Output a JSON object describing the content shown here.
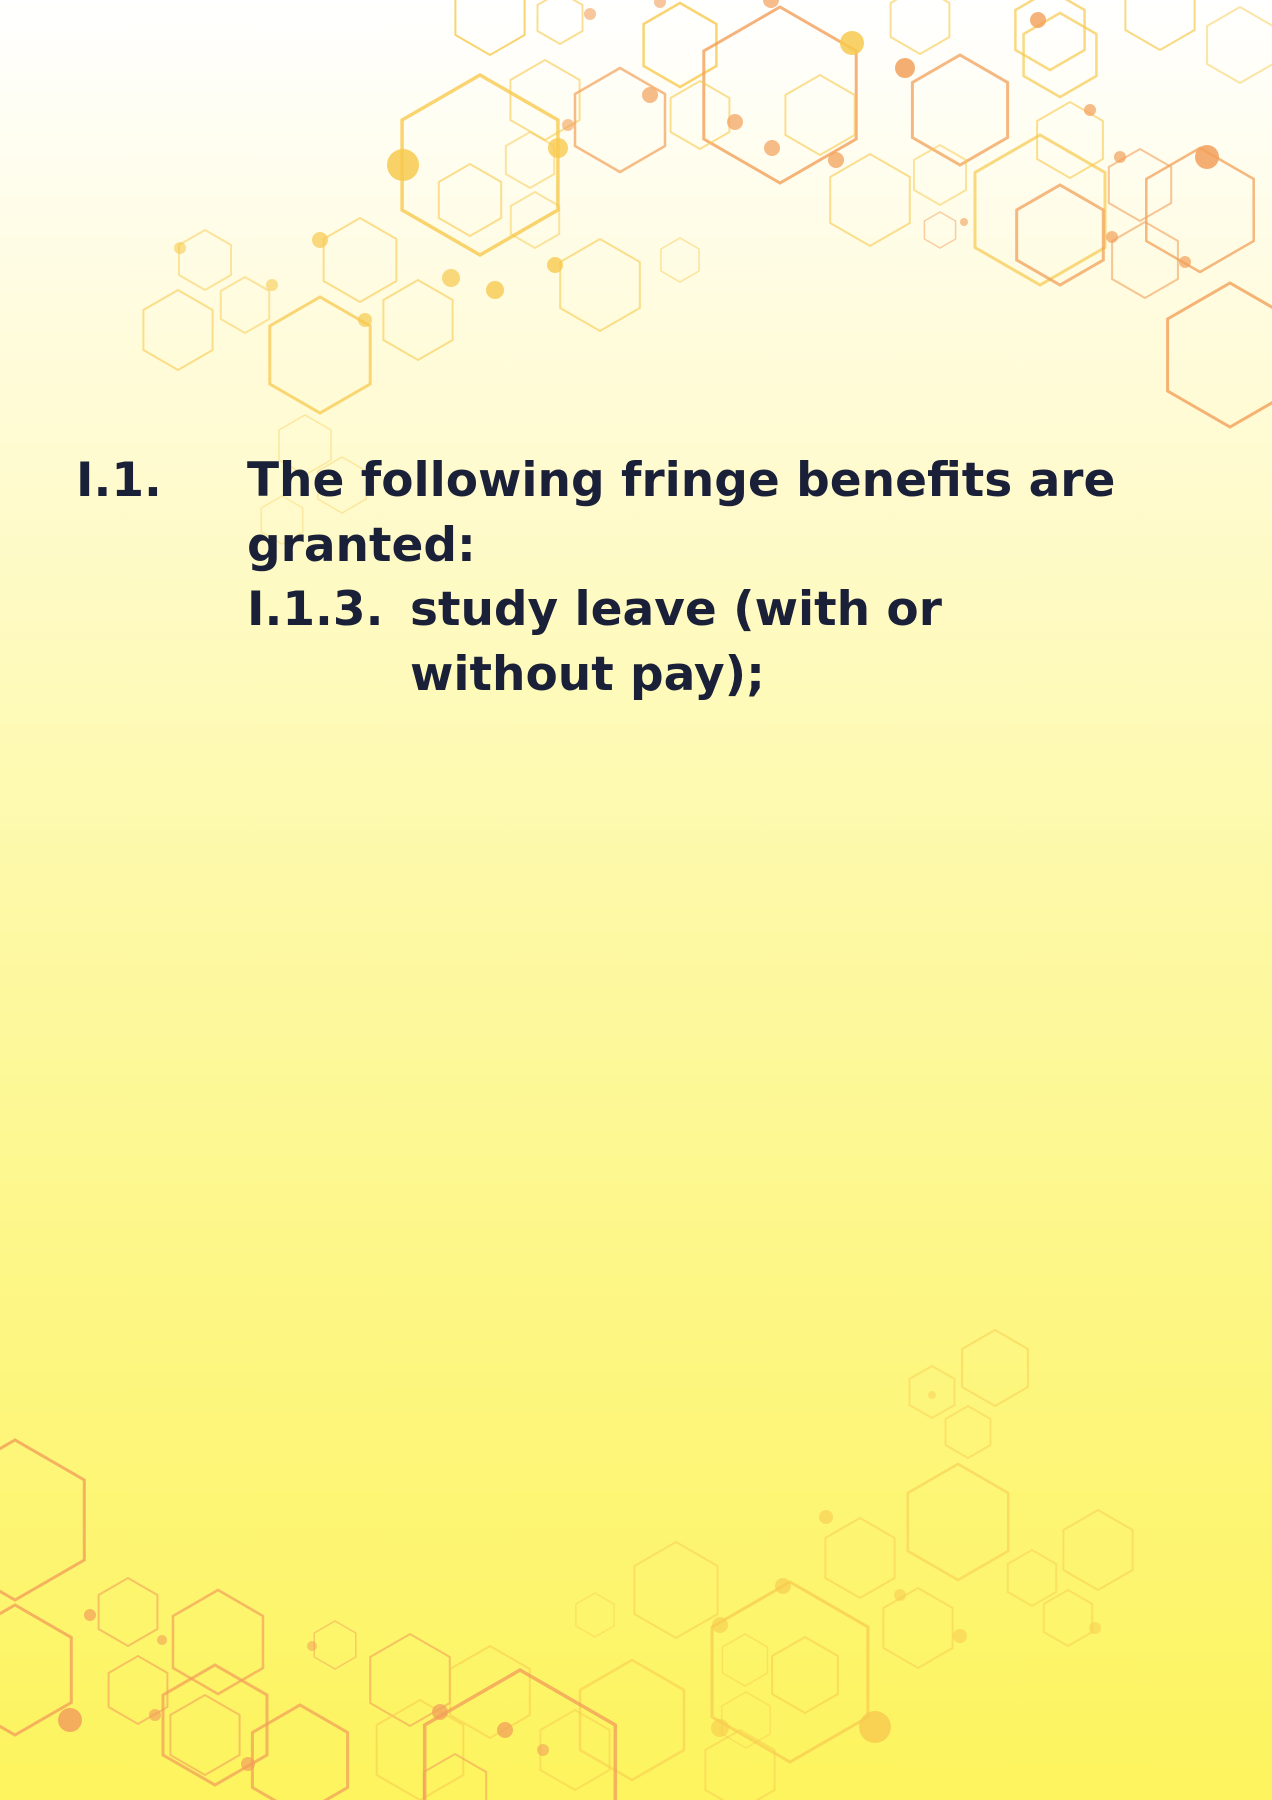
{
  "clauses": [
    {
      "number": "I.1.",
      "text": "The following fringe benefits are granted:"
    },
    {
      "number": "I.1.3.",
      "text": "study leave (with or without pay);"
    }
  ],
  "colors": {
    "text": "#1a2038",
    "hex_yellow": "#f7c94f",
    "hex_orange": "#f2a05a"
  },
  "decoration": "hexagon-network"
}
